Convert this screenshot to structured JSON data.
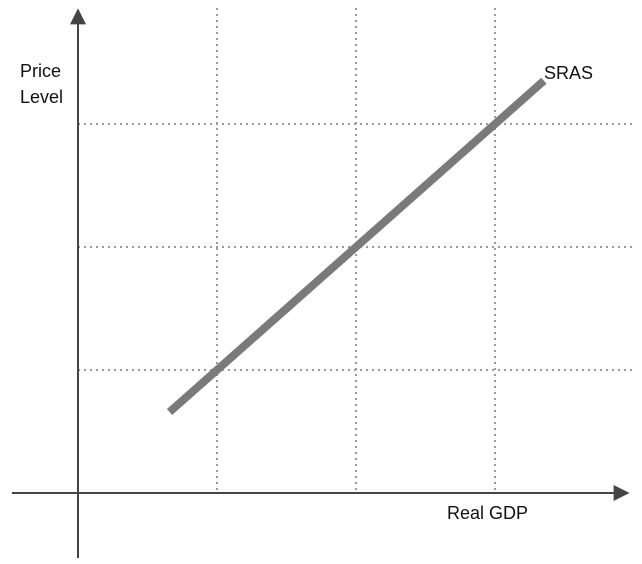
{
  "chart_data": {
    "type": "line",
    "title": "",
    "xlabel": "Real GDP",
    "ylabel_lines": [
      "Price",
      "Level"
    ],
    "grid": true,
    "xlim": [
      0,
      4
    ],
    "ylim": [
      0,
      3
    ],
    "vertical_gridlines": [
      1,
      2,
      3
    ],
    "horizontal_gridlines": [
      1,
      2,
      3
    ],
    "series": [
      {
        "name": "SRAS",
        "points": [
          {
            "x": 0.68,
            "y": 0.68
          },
          {
            "x": 3.33,
            "y": 3.33
          }
        ]
      }
    ],
    "annotations": [
      {
        "text": "SRAS",
        "position": "upper-right end of the line"
      }
    ],
    "colors": {
      "axis": "#444444",
      "grid": "#9a9a9a",
      "series": "#7a7a7a"
    }
  }
}
